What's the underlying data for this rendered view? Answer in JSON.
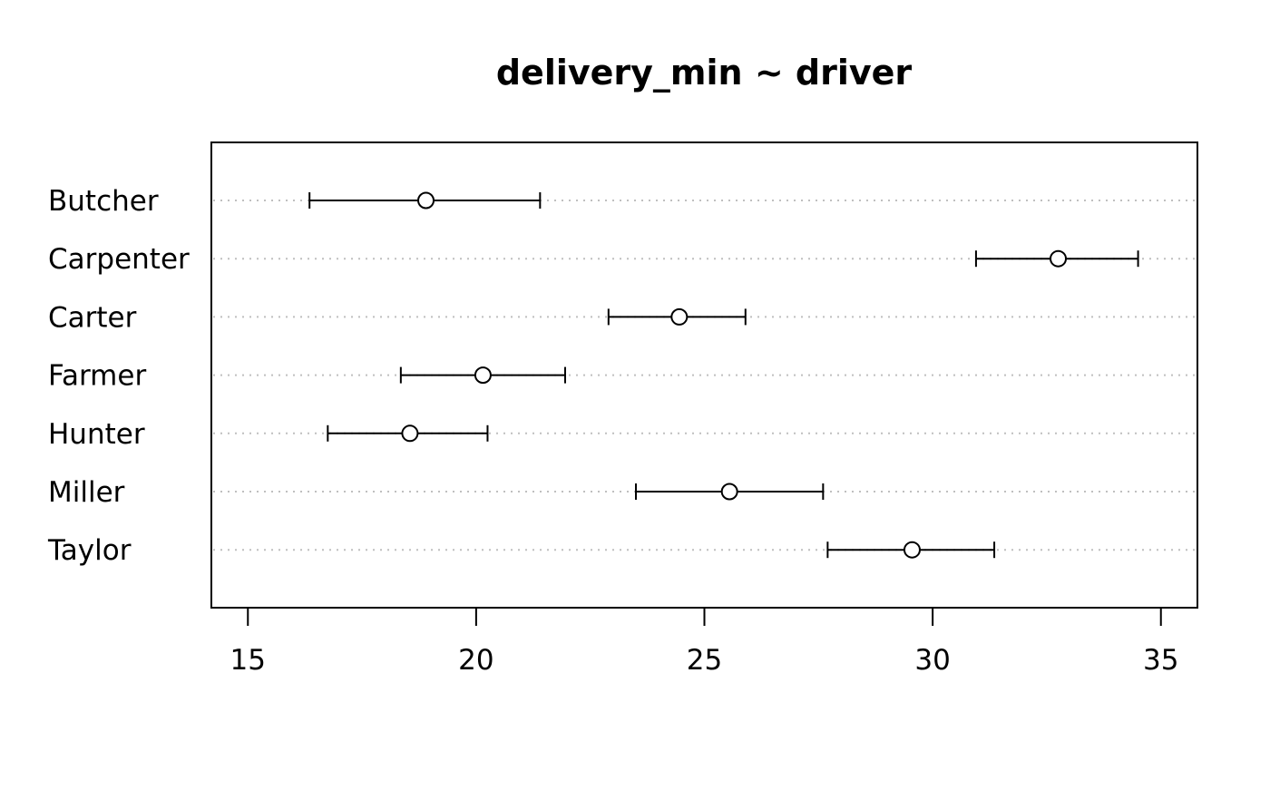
{
  "chart_data": {
    "type": "dotplot-errorbar",
    "title": "delivery_min ~ driver",
    "xlabel": "",
    "ylabel": "",
    "xlim": [
      14.2,
      35.8
    ],
    "xticks": [
      15,
      20,
      25,
      30,
      35
    ],
    "grid": "dotted horizontal guide per category",
    "legend": "none",
    "categories": [
      "Butcher",
      "Carpenter",
      "Carter",
      "Farmer",
      "Hunter",
      "Miller",
      "Taylor"
    ],
    "series": [
      {
        "estimate": [
          18.9,
          32.75,
          24.45,
          20.15,
          18.55,
          25.55,
          29.55
        ],
        "lower": [
          16.35,
          30.95,
          22.9,
          18.35,
          16.75,
          23.5,
          27.7
        ],
        "upper": [
          21.4,
          34.5,
          25.9,
          21.95,
          20.25,
          27.6,
          31.35
        ]
      }
    ],
    "colors": {
      "line": "#000000",
      "point_fill": "#ffffff",
      "grid": "#bfbfbf"
    }
  }
}
